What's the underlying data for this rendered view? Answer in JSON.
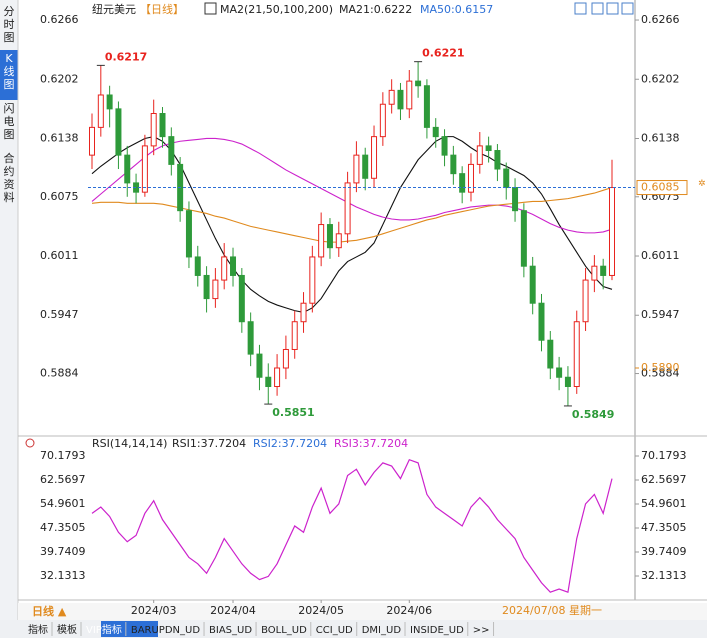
{
  "sidebar_tabs": [
    "分时图",
    "K线图",
    "闪电图",
    "合约资料"
  ],
  "header": {
    "symbol": "纽元美元",
    "period": "【日线】",
    "ma_params": "MA2(21,50,100,200)",
    "ma21": "MA21:0.6222",
    "ma50": "MA50:0.6157"
  },
  "chart_data": {
    "type": "candlestick",
    "up_color": "#e8231e",
    "down_color": "#2e9a3a",
    "candles": [
      [
        0.612,
        0.6165,
        0.6105,
        0.615
      ],
      [
        0.615,
        0.6217,
        0.614,
        0.6185
      ],
      [
        0.6185,
        0.6195,
        0.615,
        0.617
      ],
      [
        0.617,
        0.6178,
        0.6105,
        0.612
      ],
      [
        0.612,
        0.613,
        0.6075,
        0.609
      ],
      [
        0.609,
        0.61,
        0.6068,
        0.608
      ],
      [
        0.608,
        0.6142,
        0.6075,
        0.613
      ],
      [
        0.613,
        0.618,
        0.612,
        0.6165
      ],
      [
        0.6165,
        0.6172,
        0.6128,
        0.614
      ],
      [
        0.614,
        0.615,
        0.6098,
        0.611
      ],
      [
        0.611,
        0.6118,
        0.6048,
        0.606
      ],
      [
        0.606,
        0.607,
        0.5998,
        0.601
      ],
      [
        0.601,
        0.6022,
        0.5978,
        0.599
      ],
      [
        0.599,
        0.6,
        0.595,
        0.5965
      ],
      [
        0.5965,
        0.5998,
        0.5955,
        0.5985
      ],
      [
        0.5985,
        0.6025,
        0.5975,
        0.601
      ],
      [
        0.601,
        0.602,
        0.5978,
        0.599
      ],
      [
        0.599,
        0.5998,
        0.5928,
        0.594
      ],
      [
        0.594,
        0.595,
        0.5892,
        0.5905
      ],
      [
        0.5905,
        0.5915,
        0.5866,
        0.588
      ],
      [
        0.588,
        0.5895,
        0.5851,
        0.587
      ],
      [
        0.587,
        0.5905,
        0.586,
        0.589
      ],
      [
        0.589,
        0.5925,
        0.5878,
        0.591
      ],
      [
        0.591,
        0.5952,
        0.59,
        0.594
      ],
      [
        0.594,
        0.5972,
        0.5928,
        0.596
      ],
      [
        0.596,
        0.6022,
        0.595,
        0.601
      ],
      [
        0.601,
        0.6058,
        0.6,
        0.6045
      ],
      [
        0.6045,
        0.6052,
        0.6008,
        0.602
      ],
      [
        0.602,
        0.6048,
        0.601,
        0.6035
      ],
      [
        0.6035,
        0.6102,
        0.6025,
        0.609
      ],
      [
        0.609,
        0.6135,
        0.608,
        0.612
      ],
      [
        0.612,
        0.6128,
        0.6082,
        0.6095
      ],
      [
        0.6095,
        0.6152,
        0.6085,
        0.614
      ],
      [
        0.614,
        0.6188,
        0.613,
        0.6175
      ],
      [
        0.6175,
        0.6202,
        0.6165,
        0.619
      ],
      [
        0.619,
        0.6198,
        0.6158,
        0.617
      ],
      [
        0.617,
        0.6212,
        0.616,
        0.62
      ],
      [
        0.62,
        0.6221,
        0.6182,
        0.6195
      ],
      [
        0.6195,
        0.6202,
        0.6138,
        0.615
      ],
      [
        0.615,
        0.616,
        0.6128,
        0.614
      ],
      [
        0.614,
        0.6148,
        0.6108,
        0.612
      ],
      [
        0.612,
        0.613,
        0.6088,
        0.61
      ],
      [
        0.61,
        0.6108,
        0.6068,
        0.608
      ],
      [
        0.608,
        0.6122,
        0.607,
        0.611
      ],
      [
        0.611,
        0.6145,
        0.61,
        0.613
      ],
      [
        0.613,
        0.614,
        0.6112,
        0.6125
      ],
      [
        0.6125,
        0.6132,
        0.6092,
        0.6105
      ],
      [
        0.6105,
        0.6112,
        0.6072,
        0.6085
      ],
      [
        0.6085,
        0.6095,
        0.6048,
        0.606
      ],
      [
        0.606,
        0.6068,
        0.5988,
        0.6
      ],
      [
        0.6,
        0.601,
        0.5948,
        0.596
      ],
      [
        0.596,
        0.597,
        0.5908,
        0.592
      ],
      [
        0.592,
        0.593,
        0.5878,
        0.589
      ],
      [
        0.589,
        0.5902,
        0.5866,
        0.588
      ],
      [
        0.588,
        0.5892,
        0.5849,
        0.587
      ],
      [
        0.587,
        0.5952,
        0.5862,
        0.594
      ],
      [
        0.594,
        0.5998,
        0.593,
        0.5985
      ],
      [
        0.5985,
        0.6012,
        0.5972,
        0.6
      ],
      [
        0.6,
        0.6008,
        0.5975,
        0.599
      ],
      [
        0.599,
        0.6115,
        0.5985,
        0.6085
      ]
    ],
    "series": [
      {
        "color": "#111111",
        "values": [
          0.61,
          0.6108,
          0.6115,
          0.6122,
          0.6128,
          0.6133,
          0.6138,
          0.614,
          0.6135,
          0.6125,
          0.611,
          0.609,
          0.607,
          0.605,
          0.603,
          0.6012,
          0.5998,
          0.5985,
          0.5975,
          0.5968,
          0.5962,
          0.5958,
          0.5955,
          0.5952,
          0.595,
          0.5955,
          0.5965,
          0.598,
          0.5995,
          0.6005,
          0.601,
          0.6015,
          0.6025,
          0.6045,
          0.6065,
          0.6085,
          0.61,
          0.6115,
          0.6125,
          0.6135,
          0.614,
          0.614,
          0.6135,
          0.6128,
          0.6122,
          0.6118,
          0.6112,
          0.6108,
          0.6103,
          0.6098,
          0.609,
          0.6078,
          0.6062,
          0.6045,
          0.603,
          0.6015,
          0.6,
          0.5988,
          0.5978,
          0.5975
        ]
      },
      {
        "color": "#cc22cc",
        "values": [
          0.607,
          0.6078,
          0.6086,
          0.6094,
          0.6102,
          0.611,
          0.6118,
          0.6125,
          0.613,
          0.6133,
          0.6135,
          0.6136,
          0.6137,
          0.6138,
          0.6138,
          0.6137,
          0.6135,
          0.6132,
          0.6127,
          0.6122,
          0.6116,
          0.611,
          0.6104,
          0.6099,
          0.6094,
          0.6089,
          0.6084,
          0.6079,
          0.6074,
          0.6069,
          0.6064,
          0.606,
          0.6056,
          0.6053,
          0.6051,
          0.605,
          0.605,
          0.6051,
          0.6053,
          0.6055,
          0.6058,
          0.606,
          0.6062,
          0.6064,
          0.6065,
          0.6066,
          0.6066,
          0.6065,
          0.6063,
          0.606,
          0.6056,
          0.6051,
          0.6046,
          0.6042,
          0.6039,
          0.6037,
          0.6036,
          0.6036,
          0.6037,
          0.604
        ]
      },
      {
        "color": "#e08a1e",
        "values": [
          0.6068,
          0.6069,
          0.6069,
          0.6069,
          0.6068,
          0.6068,
          0.6068,
          0.6068,
          0.6067,
          0.6065,
          0.6063,
          0.6061,
          0.6059,
          0.6057,
          0.6054,
          0.6052,
          0.6049,
          0.6046,
          0.6043,
          0.6041,
          0.6039,
          0.6037,
          0.6035,
          0.6033,
          0.6031,
          0.6029,
          0.6027,
          0.6026,
          0.6026,
          0.6027,
          0.6028,
          0.603,
          0.6032,
          0.6035,
          0.6038,
          0.6041,
          0.6044,
          0.6047,
          0.605,
          0.6052,
          0.6055,
          0.6057,
          0.6059,
          0.6061,
          0.6063,
          0.6065,
          0.6066,
          0.6067,
          0.6068,
          0.6069,
          0.607,
          0.607,
          0.6071,
          0.6072,
          0.6073,
          0.6075,
          0.6077,
          0.6079,
          0.6082,
          0.6085
        ]
      }
    ],
    "ylim": [
      0.5823,
      0.6279
    ],
    "yticks": [
      0.6266,
      0.6202,
      0.6138,
      0.6075,
      0.6011,
      0.5947,
      0.5884
    ],
    "annotations": [
      {
        "text": "0.6217",
        "candle": 1,
        "kind": "high"
      },
      {
        "text": "0.6221",
        "candle": 37,
        "kind": "high"
      },
      {
        "text": "0.5851",
        "candle": 20,
        "kind": "low"
      },
      {
        "text": "0.5849",
        "candle": 54,
        "kind": "low"
      }
    ],
    "last_price": 0.6085,
    "orange_level": {
      "value": 0.589,
      "label": "0.5890"
    },
    "x_labels": [
      {
        "label": "2024/03",
        "candle": 7
      },
      {
        "label": "2024/04",
        "candle": 16
      },
      {
        "label": "2024/05",
        "candle": 26
      },
      {
        "label": "2024/06",
        "candle": 36
      }
    ],
    "crosshair_label": "2024/07/08 星期一"
  },
  "rsi": {
    "type": "line",
    "title": "RSI(14,14,14)",
    "rsi1": "RSI1:37.7204",
    "rsi2": "RSI2:37.7204",
    "rsi3": "RSI3:37.7204",
    "color": "#cc22cc",
    "values": [
      52,
      54,
      51,
      46,
      43,
      45,
      52,
      56,
      50,
      46,
      42,
      38,
      36,
      33,
      38,
      44,
      40,
      36,
      33,
      31,
      32,
      36,
      42,
      48,
      46,
      54,
      60,
      52,
      55,
      64,
      66,
      61,
      65,
      68,
      67,
      63,
      69,
      68,
      58,
      54,
      52,
      50,
      48,
      54,
      57,
      54,
      50,
      47,
      44,
      38,
      34,
      30,
      27,
      28,
      27,
      44,
      55,
      58,
      52,
      63
    ],
    "ylim": [
      25.79,
      72.72
    ],
    "yticks": [
      70.1793,
      62.5697,
      54.9601,
      47.3505,
      39.7409,
      32.1313
    ]
  },
  "footer": {
    "period": "日线 ▲",
    "tabs": [
      "指标",
      "模板",
      "VIP指标",
      "BARUPDN_UD",
      "BIAS_UD",
      "BOLL_UD",
      "CCI_UD",
      "DMI_UD",
      "INSIDE_UD",
      ">>"
    ]
  }
}
